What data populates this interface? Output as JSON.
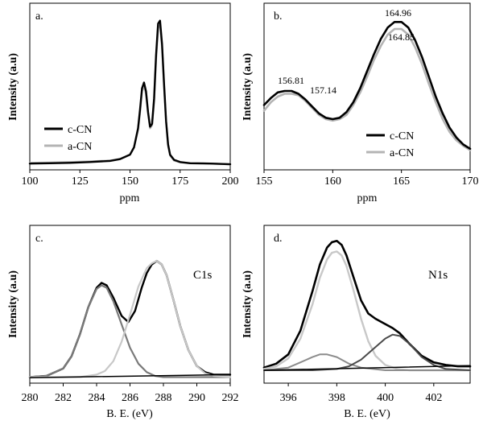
{
  "chart_data": [
    {
      "panel_label": "a.",
      "type": "line",
      "xlabel": "ppm",
      "ylabel": "Intensity (a.u)",
      "xlim": [
        100,
        200
      ],
      "ylim": [
        0,
        1
      ],
      "xticks": [
        100,
        125,
        150,
        175,
        200
      ],
      "legend": "bottom-left",
      "series": [
        {
          "name": "c-CN",
          "color": "#000000",
          "width": 2.4,
          "x": [
            100,
            110,
            120,
            130,
            140,
            145,
            150,
            152,
            154,
            155,
            156,
            157,
            158,
            159,
            160,
            161,
            162,
            163,
            164,
            165,
            166,
            167,
            168,
            169,
            170,
            172,
            175,
            180,
            190,
            200
          ],
          "y": [
            0.01,
            0.012,
            0.015,
            0.02,
            0.028,
            0.04,
            0.07,
            0.12,
            0.25,
            0.38,
            0.52,
            0.56,
            0.5,
            0.36,
            0.26,
            0.28,
            0.45,
            0.75,
            0.96,
            0.98,
            0.82,
            0.55,
            0.3,
            0.14,
            0.07,
            0.035,
            0.02,
            0.012,
            0.01,
            0.005
          ]
        },
        {
          "name": "a-CN",
          "color": "#b4b4b4",
          "width": 2.4,
          "x": [
            100,
            110,
            120,
            130,
            140,
            145,
            150,
            152,
            154,
            155,
            156,
            157,
            158,
            159,
            160,
            161,
            162,
            163,
            164,
            165,
            166,
            167,
            168,
            169,
            170,
            172,
            175,
            180,
            190,
            200
          ],
          "y": [
            0.015,
            0.017,
            0.02,
            0.024,
            0.03,
            0.042,
            0.072,
            0.12,
            0.24,
            0.36,
            0.5,
            0.54,
            0.48,
            0.35,
            0.25,
            0.27,
            0.43,
            0.72,
            0.93,
            0.95,
            0.8,
            0.53,
            0.29,
            0.13,
            0.065,
            0.03,
            0.018,
            0.012,
            0.01,
            0.005
          ]
        }
      ]
    },
    {
      "panel_label": "b.",
      "type": "line",
      "xlabel": "ppm",
      "ylabel": "Intensity (a.u)",
      "xlim": [
        155,
        170
      ],
      "ylim": [
        0,
        1
      ],
      "xticks": [
        155,
        160,
        165,
        170
      ],
      "legend": "bottom-right",
      "annotations": [
        {
          "text": "156.81",
          "x": 156.81,
          "y": 0.5
        },
        {
          "text": "157.14",
          "x": 157.14,
          "y": 0.47
        },
        {
          "text": "164.96",
          "x": 164.96,
          "y": 0.96
        },
        {
          "text": "164.85",
          "x": 164.85,
          "y": 0.81
        }
      ],
      "series": [
        {
          "name": "c-CN",
          "color": "#000000",
          "width": 2.6,
          "x": [
            155,
            155.5,
            156,
            156.5,
            157,
            157.5,
            158,
            158.5,
            159,
            159.5,
            160,
            160.5,
            161,
            161.5,
            162,
            162.5,
            163,
            163.5,
            164,
            164.5,
            165,
            165.5,
            166,
            166.5,
            167,
            167.5,
            168,
            168.5,
            169,
            169.5,
            170
          ],
          "y": [
            0.38,
            0.43,
            0.47,
            0.48,
            0.48,
            0.46,
            0.42,
            0.37,
            0.32,
            0.29,
            0.28,
            0.29,
            0.33,
            0.4,
            0.5,
            0.62,
            0.74,
            0.85,
            0.93,
            0.97,
            0.97,
            0.93,
            0.84,
            0.72,
            0.58,
            0.44,
            0.32,
            0.22,
            0.15,
            0.1,
            0.07
          ]
        },
        {
          "name": "a-CN",
          "color": "#b4b4b4",
          "width": 2.6,
          "x": [
            155,
            155.5,
            156,
            156.5,
            157,
            157.5,
            158,
            158.5,
            159,
            159.5,
            160,
            160.5,
            161,
            161.5,
            162,
            162.5,
            163,
            163.5,
            164,
            164.5,
            165,
            165.5,
            166,
            166.5,
            167,
            167.5,
            168,
            168.5,
            169,
            169.5,
            170
          ],
          "y": [
            0.34,
            0.4,
            0.44,
            0.46,
            0.46,
            0.45,
            0.41,
            0.36,
            0.31,
            0.28,
            0.27,
            0.28,
            0.31,
            0.38,
            0.47,
            0.58,
            0.7,
            0.8,
            0.88,
            0.92,
            0.92,
            0.88,
            0.79,
            0.67,
            0.53,
            0.4,
            0.28,
            0.19,
            0.13,
            0.09,
            0.06
          ]
        }
      ]
    },
    {
      "panel_label": "c.",
      "type": "line",
      "xlabel": "B. E. (eV)",
      "ylabel": "Intensity (a.u)",
      "annotation_text": "C1s",
      "xlim": [
        280,
        292
      ],
      "ylim": [
        0,
        1
      ],
      "xticks": [
        280,
        282,
        284,
        286,
        288,
        290,
        292
      ],
      "series": [
        {
          "color": "#000000",
          "width": 2.4,
          "x": [
            280,
            281,
            282,
            282.5,
            283,
            283.5,
            284,
            284.3,
            284.6,
            285,
            285.5,
            285.9,
            286.3,
            286.7,
            287,
            287.3,
            287.6,
            287.9,
            288.2,
            288.6,
            289,
            289.5,
            290,
            290.5,
            291,
            292
          ],
          "y": [
            0.01,
            0.02,
            0.08,
            0.18,
            0.36,
            0.58,
            0.74,
            0.78,
            0.76,
            0.66,
            0.51,
            0.46,
            0.55,
            0.74,
            0.86,
            0.93,
            0.96,
            0.93,
            0.84,
            0.64,
            0.43,
            0.23,
            0.1,
            0.05,
            0.03,
            0.03
          ]
        },
        {
          "color": "#7a7a7a",
          "width": 2.2,
          "x": [
            280,
            281,
            282,
            282.5,
            283,
            283.5,
            284,
            284.3,
            284.6,
            285,
            285.5,
            286,
            286.5,
            287,
            287.5,
            288,
            289,
            290,
            292
          ],
          "y": [
            0.01,
            0.02,
            0.08,
            0.18,
            0.36,
            0.58,
            0.73,
            0.76,
            0.74,
            0.63,
            0.44,
            0.25,
            0.12,
            0.05,
            0.02,
            0.01,
            0.01,
            0.01,
            0.01
          ]
        },
        {
          "color": "#c8c8c8",
          "width": 2.2,
          "x": [
            280,
            282,
            283,
            284,
            284.5,
            285,
            285.5,
            286,
            286.5,
            287,
            287.3,
            287.6,
            287.9,
            288.2,
            288.6,
            289,
            289.5,
            290,
            290.5,
            291,
            292
          ],
          "y": [
            0.01,
            0.01,
            0.01,
            0.03,
            0.06,
            0.14,
            0.3,
            0.52,
            0.75,
            0.9,
            0.94,
            0.96,
            0.93,
            0.84,
            0.64,
            0.43,
            0.23,
            0.1,
            0.04,
            0.02,
            0.01
          ]
        },
        {
          "color": "#000000",
          "width": 1.5,
          "x": [
            280,
            292
          ],
          "y": [
            0.005,
            0.03
          ]
        }
      ]
    },
    {
      "panel_label": "d.",
      "type": "line",
      "xlabel": "B. E. (eV)",
      "ylabel": "Intensity (a.u)",
      "annotation_text": "N1s",
      "xlim": [
        395,
        403.5
      ],
      "ylim": [
        0,
        1
      ],
      "xticks": [
        396,
        398,
        400,
        402
      ],
      "series": [
        {
          "color": "#000000",
          "width": 2.6,
          "x": [
            395,
            395.5,
            396,
            396.5,
            397,
            397.3,
            397.6,
            397.8,
            398,
            398.2,
            398.4,
            398.7,
            399,
            399.3,
            399.6,
            400,
            400.3,
            400.6,
            401,
            401.5,
            402,
            402.5,
            403,
            403.5
          ],
          "y": [
            0.02,
            0.05,
            0.12,
            0.3,
            0.6,
            0.8,
            0.93,
            0.97,
            0.98,
            0.95,
            0.87,
            0.7,
            0.53,
            0.43,
            0.39,
            0.35,
            0.32,
            0.28,
            0.2,
            0.11,
            0.06,
            0.04,
            0.03,
            0.03
          ]
        },
        {
          "color": "#c8c8c8",
          "width": 2.4,
          "x": [
            395,
            395.5,
            396,
            396.5,
            397,
            397.3,
            397.6,
            397.8,
            398,
            398.2,
            398.4,
            398.7,
            399,
            399.3,
            399.6,
            400,
            400.5,
            401,
            402,
            403.5
          ],
          "y": [
            0.01,
            0.03,
            0.09,
            0.24,
            0.5,
            0.7,
            0.84,
            0.89,
            0.9,
            0.87,
            0.79,
            0.6,
            0.39,
            0.22,
            0.11,
            0.04,
            0.01,
            0.0,
            0.0,
            0.0
          ]
        },
        {
          "color": "#8c8c8c",
          "width": 2.0,
          "x": [
            395,
            396,
            396.5,
            397,
            397.3,
            397.6,
            398,
            398.5,
            399,
            399.5,
            400,
            401,
            403.5
          ],
          "y": [
            0.0,
            0.02,
            0.06,
            0.1,
            0.12,
            0.12,
            0.1,
            0.05,
            0.02,
            0.01,
            0.0,
            0.0,
            0.0
          ]
        },
        {
          "color": "#4a4a4a",
          "width": 2.0,
          "x": [
            395,
            397,
            398,
            398.5,
            399,
            399.5,
            400,
            400.3,
            400.6,
            401,
            401.5,
            402,
            402.5,
            403.5
          ],
          "y": [
            0.0,
            0.0,
            0.01,
            0.03,
            0.08,
            0.16,
            0.24,
            0.27,
            0.26,
            0.2,
            0.1,
            0.04,
            0.01,
            0.0
          ]
        },
        {
          "color": "#000000",
          "width": 1.5,
          "x": [
            395,
            403.5
          ],
          "y": [
            0.0,
            0.035
          ]
        }
      ]
    }
  ]
}
